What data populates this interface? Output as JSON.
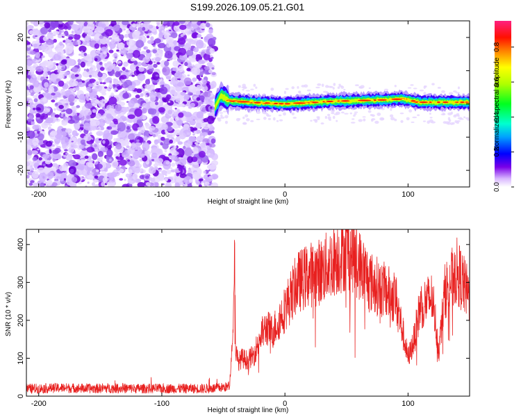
{
  "page": {
    "title": "S199.2026.109.05.21.G01"
  },
  "chart_data": [
    {
      "type": "heatmap",
      "name": "spectrogram",
      "title": "S199.2026.109.05.21.G01",
      "xlabel": "Height of straight line (km)",
      "ylabel": "Frequency (Hz)",
      "xlim": [
        -210,
        150
      ],
      "ylim": [
        -25,
        25
      ],
      "xticks": [
        -200,
        -100,
        0,
        100
      ],
      "yticks": [
        -20,
        -10,
        0,
        10,
        20
      ],
      "noise_region_x": [
        -210,
        -57
      ],
      "signal_onset_x": -57,
      "signal_center_hz": [
        {
          "x": -57,
          "f": -1.0
        },
        {
          "x": -52,
          "f": 2.5
        },
        {
          "x": -45,
          "f": 1.0
        },
        {
          "x": -30,
          "f": 0.5
        },
        {
          "x": 0,
          "f": 0.0
        },
        {
          "x": 40,
          "f": 0.8
        },
        {
          "x": 80,
          "f": 1.2
        },
        {
          "x": 95,
          "f": 1.5
        },
        {
          "x": 110,
          "f": 0.5
        },
        {
          "x": 150,
          "f": 0.5
        }
      ],
      "colorbar": {
        "label": "Normalized spectral amplitude",
        "range": [
          0.0,
          0.95
        ],
        "ticks": [
          "0.0",
          "0.2",
          "0.4",
          "0.6",
          "0.8"
        ]
      }
    },
    {
      "type": "line",
      "name": "snr",
      "xlabel": "Height of straight line (km)",
      "ylabel": "SNR (10 * v/v)",
      "xlim": [
        -210,
        150
      ],
      "ylim": [
        0,
        440
      ],
      "xticks": [
        -200,
        -100,
        0,
        100
      ],
      "yticks": [
        0,
        100,
        200,
        300,
        400
      ],
      "color": "#e8201f",
      "series": [
        {
          "name": "SNR",
          "x": [
            -210,
            -200,
            -180,
            -160,
            -140,
            -120,
            -100,
            -80,
            -60,
            -45,
            -42,
            -41,
            -40,
            -38,
            -35,
            -30,
            -25,
            -20,
            -15,
            -10,
            -5,
            0,
            10,
            20,
            30,
            40,
            50,
            55,
            60,
            70,
            80,
            90,
            95,
            100,
            105,
            110,
            120,
            125,
            130,
            140,
            150
          ],
          "y": [
            20,
            20,
            22,
            20,
            21,
            20,
            20,
            20,
            20,
            25,
            180,
            390,
            120,
            90,
            100,
            95,
            110,
            160,
            180,
            170,
            200,
            230,
            300,
            320,
            330,
            360,
            380,
            375,
            350,
            300,
            280,
            260,
            180,
            100,
            150,
            240,
            260,
            120,
            280,
            330,
            260
          ]
        }
      ]
    }
  ]
}
